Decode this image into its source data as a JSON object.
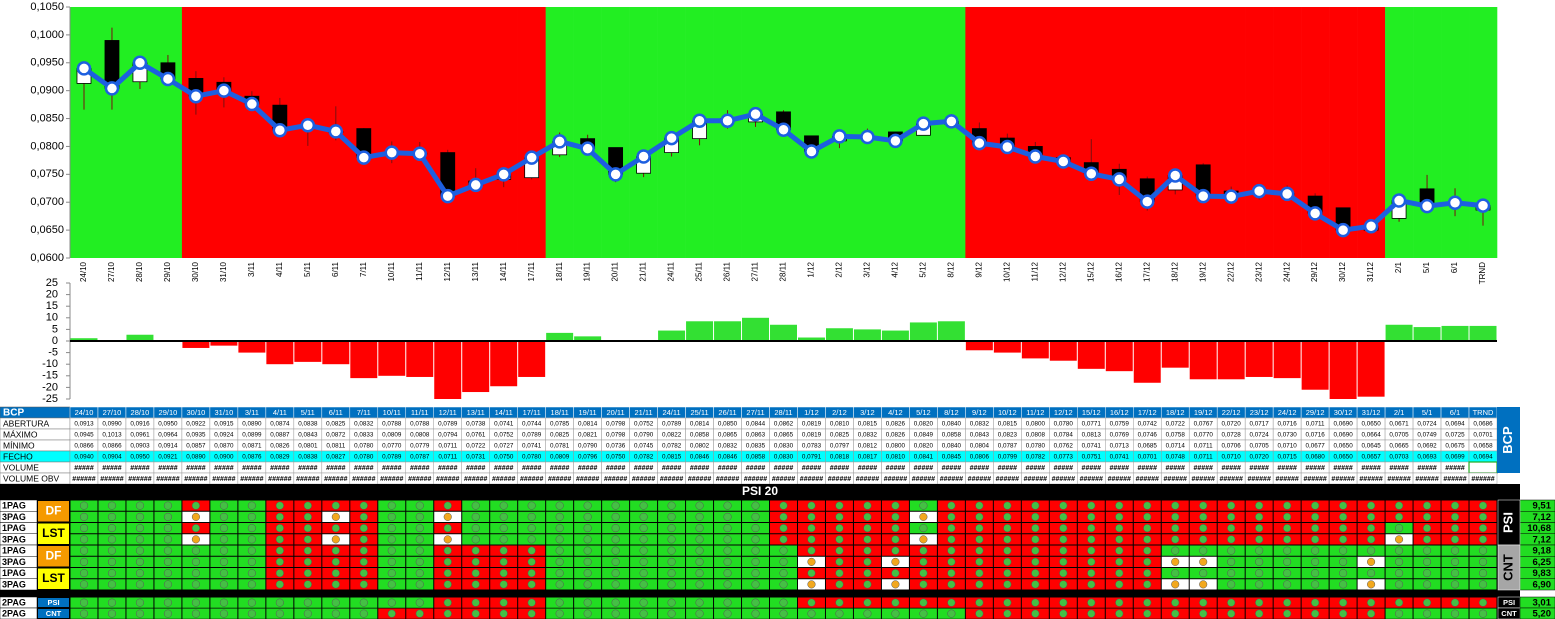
{
  "chart_data": [
    {
      "type": "candlestick",
      "categories": [
        "24/10",
        "27/10",
        "28/10",
        "29/10",
        "30/10",
        "31/10",
        "3/11",
        "4/11",
        "5/11",
        "6/11",
        "7/11",
        "10/11",
        "11/11",
        "12/11",
        "13/11",
        "14/11",
        "17/11",
        "18/11",
        "19/11",
        "20/11",
        "21/11",
        "24/11",
        "25/11",
        "26/11",
        "27/11",
        "28/11",
        "1/12",
        "2/12",
        "3/12",
        "4/12",
        "5/12",
        "8/12",
        "9/12",
        "10/12",
        "11/12",
        "12/12",
        "15/12",
        "16/12",
        "17/12",
        "18/12",
        "19/12",
        "22/12",
        "23/12",
        "24/12",
        "29/12",
        "30/12",
        "31/12",
        "2/1",
        "5/1",
        "6/1",
        "TRND"
      ],
      "series": [
        {
          "name": "ABERTURA",
          "values": [
            0.0913,
            0.099,
            0.0916,
            0.095,
            0.0922,
            0.0915,
            0.089,
            0.0874,
            0.0838,
            0.0825,
            0.0832,
            0.0788,
            0.0788,
            0.0789,
            0.0738,
            0.0741,
            0.0744,
            0.0785,
            0.0814,
            0.0798,
            0.0752,
            0.0789,
            0.0814,
            0.085,
            0.0844,
            0.0862,
            0.0819,
            0.081,
            0.0815,
            0.0826,
            0.082,
            0.084,
            0.0832,
            0.0815,
            0.08,
            0.078,
            0.0771,
            0.0759,
            0.0742,
            0.0722,
            0.0767,
            0.072,
            0.0717,
            0.0716,
            0.0711,
            0.069,
            0.065,
            0.0671,
            0.0724,
            0.0694,
            0.0686
          ],
          "value_labels": [
            "0,0913",
            "0,0990",
            "0,0916",
            "0,0950",
            "0,0922",
            "0,0915",
            "0,0890",
            "0,0874",
            "0,0838",
            "0,0825",
            "0,0832",
            "0,0788",
            "0,0788",
            "0,0789",
            "0,0738",
            "0,0741",
            "0,0744",
            "0,0785",
            "0,0814",
            "0,0798",
            "0,0752",
            "0,0789",
            "0,0814",
            "0,0850",
            "0,0844",
            "0,0862",
            "0,0819",
            "0,0810",
            "0,0815",
            "0,0826",
            "0,0820",
            "0,0840",
            "0,0832",
            "0,0815",
            "0,0800",
            "0,0780",
            "0,0771",
            "0,0759",
            "0,0742",
            "0,0722",
            "0,0767",
            "0,0720",
            "0,0717",
            "0,0716",
            "0,0711",
            "0,0690",
            "0,0650",
            "0,0671",
            "0,0724",
            "0,0694",
            "0,0686"
          ]
        },
        {
          "name": "MÁXIMO",
          "values": [
            0.0945,
            0.1013,
            0.0961,
            0.0964,
            0.0935,
            0.0924,
            0.0899,
            0.0887,
            0.0843,
            0.0872,
            0.0833,
            0.0809,
            0.0808,
            0.0794,
            0.0761,
            0.0752,
            0.0789,
            0.0825,
            0.0821,
            0.0798,
            0.079,
            0.0822,
            0.0858,
            0.0865,
            0.0863,
            0.0865,
            0.0819,
            0.0825,
            0.0832,
            0.0826,
            0.0849,
            0.0858,
            0.0843,
            0.0823,
            0.0808,
            0.0784,
            0.0813,
            0.0769,
            0.0746,
            0.0758,
            0.077,
            0.0728,
            0.0724,
            0.073,
            0.0716,
            0.069,
            0.0664,
            0.0705,
            0.0749,
            0.0725,
            0.0701
          ],
          "value_labels": [
            "0,0945",
            "0,1013",
            "0,0961",
            "0,0964",
            "0,0935",
            "0,0924",
            "0,0899",
            "0,0887",
            "0,0843",
            "0,0872",
            "0,0833",
            "0,0809",
            "0,0808",
            "0,0794",
            "0,0761",
            "0,0752",
            "0,0789",
            "0,0825",
            "0,0821",
            "0,0798",
            "0,0790",
            "0,0822",
            "0,0858",
            "0,0865",
            "0,0863",
            "0,0865",
            "0,0819",
            "0,0825",
            "0,0832",
            "0,0826",
            "0,0849",
            "0,0858",
            "0,0843",
            "0,0823",
            "0,0808",
            "0,0784",
            "0,0813",
            "0,0769",
            "0,0746",
            "0,0758",
            "0,0770",
            "0,0728",
            "0,0724",
            "0,0730",
            "0,0716",
            "0,0690",
            "0,0664",
            "0,0705",
            "0,0749",
            "0,0725",
            "0,0701"
          ]
        },
        {
          "name": "MÍNIMO",
          "values": [
            0.0866,
            0.0866,
            0.0903,
            0.0914,
            0.0857,
            0.087,
            0.0871,
            0.0826,
            0.0801,
            0.0811,
            0.078,
            0.077,
            0.0779,
            0.0711,
            0.0722,
            0.0727,
            0.0741,
            0.0781,
            0.079,
            0.0736,
            0.0745,
            0.0782,
            0.0802,
            0.0832,
            0.0835,
            0.083,
            0.0783,
            0.0797,
            0.0812,
            0.08,
            0.082,
            0.084,
            0.0804,
            0.0787,
            0.078,
            0.0762,
            0.0741,
            0.0713,
            0.0685,
            0.0714,
            0.0711,
            0.0706,
            0.0705,
            0.071,
            0.0677,
            0.065,
            0.0645,
            0.0665,
            0.0692,
            0.0675,
            0.0658
          ],
          "value_labels": [
            "0,0866",
            "0,0866",
            "0,0903",
            "0,0914",
            "0,0857",
            "0,0870",
            "0,0871",
            "0,0826",
            "0,0801",
            "0,0811",
            "0,0780",
            "0,0770",
            "0,0779",
            "0,0711",
            "0,0722",
            "0,0727",
            "0,0741",
            "0,0781",
            "0,0790",
            "0,0736",
            "0,0745",
            "0,0782",
            "0,0802",
            "0,0832",
            "0,0835",
            "0,0830",
            "0,0783",
            "0,0797",
            "0,0812",
            "0,0800",
            "0,0820",
            "0,0840",
            "0,0804",
            "0,0787",
            "0,0780",
            "0,0762",
            "0,0741",
            "0,0713",
            "0,0685",
            "0,0714",
            "0,0711",
            "0,0706",
            "0,0705",
            "0,0710",
            "0,0677",
            "0,0650",
            "0,0645",
            "0,0665",
            "0,0692",
            "0,0675",
            "0,0658"
          ]
        },
        {
          "name": "FECHO",
          "color": "#1d5fe0",
          "values": [
            0.094,
            0.0904,
            0.095,
            0.0921,
            0.089,
            0.09,
            0.0876,
            0.0829,
            0.0838,
            0.0827,
            0.078,
            0.0789,
            0.0787,
            0.0711,
            0.0731,
            0.075,
            0.078,
            0.0809,
            0.0796,
            0.075,
            0.0782,
            0.0815,
            0.0846,
            0.0846,
            0.0858,
            0.083,
            0.0791,
            0.0818,
            0.0817,
            0.081,
            0.0841,
            0.0845,
            0.0806,
            0.0799,
            0.0782,
            0.0773,
            0.0751,
            0.0741,
            0.0701,
            0.0748,
            0.0711,
            0.071,
            0.072,
            0.0715,
            0.068,
            0.065,
            0.0657,
            0.0703,
            0.0693,
            0.0699,
            0.0694
          ],
          "value_labels": [
            "0,0940",
            "0,0904",
            "0,0950",
            "0,0921",
            "0,0890",
            "0,0900",
            "0,0876",
            "0,0829",
            "0,0838",
            "0,0827",
            "0,0780",
            "0,0789",
            "0,0787",
            "0,0711",
            "0,0731",
            "0,0750",
            "0,0780",
            "0,0809",
            "0,0796",
            "0,0750",
            "0,0782",
            "0,0815",
            "0,0846",
            "0,0846",
            "0,0858",
            "0,0830",
            "0,0791",
            "0,0818",
            "0,0817",
            "0,0810",
            "0,0841",
            "0,0845",
            "0,0806",
            "0,0799",
            "0,0782",
            "0,0773",
            "0,0751",
            "0,0741",
            "0,0701",
            "0,0748",
            "0,0711",
            "0,0710",
            "0,0720",
            "0,0715",
            "0,0680",
            "0,0650",
            "0,0657",
            "0,0703",
            "0,0693",
            "0,0699",
            "0,0694"
          ]
        }
      ],
      "ylim": [
        0.06,
        0.105
      ],
      "yticks": [
        {
          "value": 0.06,
          "label": "0,0600"
        },
        {
          "value": 0.065,
          "label": "0,0650"
        },
        {
          "value": 0.07,
          "label": "0,0700"
        },
        {
          "value": 0.075,
          "label": "0,0750"
        },
        {
          "value": 0.08,
          "label": "0,0800"
        },
        {
          "value": 0.085,
          "label": "0,0850"
        },
        {
          "value": 0.09,
          "label": "0,0900"
        },
        {
          "value": 0.095,
          "label": "0,0950"
        },
        {
          "value": 0.1,
          "label": "0,1000"
        },
        {
          "value": 0.105,
          "label": "0,1050"
        }
      ],
      "up_color": "#ffffff",
      "down_color": "#000000",
      "wick_color": "#7a1010",
      "backgrounds": [
        "#22ee22",
        "#22ee22",
        "#22ee22",
        "#22ee22",
        "#ff0000",
        "#ff0000",
        "#ff0000",
        "#ff0000",
        "#ff0000",
        "#ff0000",
        "#ff0000",
        "#ff0000",
        "#ff0000",
        "#ff0000",
        "#ff0000",
        "#ff0000",
        "#ff0000",
        "#22ee22",
        "#22ee22",
        "#22ee22",
        "#22ee22",
        "#22ee22",
        "#22ee22",
        "#22ee22",
        "#22ee22",
        "#22ee22",
        "#22ee22",
        "#22ee22",
        "#22ee22",
        "#22ee22",
        "#22ee22",
        "#22ee22",
        "#ff0000",
        "#ff0000",
        "#ff0000",
        "#ff0000",
        "#ff0000",
        "#ff0000",
        "#ff0000",
        "#ff0000",
        "#ff0000",
        "#ff0000",
        "#ff0000",
        "#ff0000",
        "#ff0000",
        "#ff0000",
        "#ff0000",
        "#22ee22",
        "#22ee22",
        "#22ee22",
        "#22ee22"
      ]
    },
    {
      "type": "bar",
      "values": [
        1.2,
        0,
        2.7,
        0,
        -3,
        -2,
        -5,
        -10,
        -9,
        -10,
        -16,
        -15,
        -15.5,
        -25,
        -22,
        -19.5,
        -15.5,
        3.5,
        2,
        0,
        0,
        4.5,
        8.5,
        8.5,
        10,
        7,
        1.5,
        5.5,
        5,
        4.5,
        8,
        8.5,
        -4,
        -5,
        -7.5,
        -8.5,
        -12,
        -13,
        -18,
        -11.5,
        -16.5,
        -16.5,
        -15.5,
        -16,
        -21,
        -25,
        -24,
        7,
        6,
        6.5,
        6.5
      ],
      "ylim": [
        -25,
        25
      ],
      "yticks": [
        25,
        20,
        15,
        10,
        5,
        0,
        -5,
        -10,
        -15,
        -20,
        -25
      ],
      "positive_color": "#33e033",
      "negative_color": "#ff0000"
    }
  ],
  "table": {
    "corner": "BCP",
    "side_label": "BCP",
    "rows": [
      {
        "label": "VOLUME",
        "cells": [
          "#####",
          "#####",
          "#####",
          "#####",
          "#####",
          "#####",
          "#####",
          "#####",
          "#####",
          "#####",
          "#####",
          "#####",
          "#####",
          "#####",
          "#####",
          "#####",
          "#####",
          "#####",
          "#####",
          "#####",
          "#####",
          "#####",
          "#####",
          "#####",
          "#####",
          "#####",
          "#####",
          "#####",
          "#####",
          "#####",
          "#####",
          "#####",
          "#####",
          "#####",
          "#####",
          "#####",
          "#####",
          "#####",
          "#####",
          "#####",
          "#####",
          "#####",
          "#####",
          "#####",
          "#####",
          "#####",
          "#####",
          "#####",
          "#####",
          "#####"
        ]
      },
      {
        "label": "VOLUME OBV",
        "cells": [
          "######",
          "######",
          "######",
          "######",
          "######",
          "######",
          "######",
          "######",
          "######",
          "######",
          "######",
          "######",
          "######",
          "######",
          "######",
          "######",
          "######",
          "######",
          "######",
          "######",
          "######",
          "######",
          "######",
          "######",
          "######",
          "######",
          "######",
          "######",
          "######",
          "######",
          "######",
          "######",
          "######",
          "######",
          "######",
          "######",
          "######",
          "######",
          "######",
          "######",
          "######",
          "######",
          "######",
          "######",
          "######",
          "######",
          "######",
          "######",
          "######",
          "######",
          "######"
        ]
      }
    ]
  },
  "psi20": {
    "title": "PSI 20",
    "palette": {
      "G": {
        "fill": "#22dd22",
        "dot": "#44c044"
      },
      "R": {
        "fill": "#ff0000",
        "dot": "#44c044"
      },
      "W": {
        "fill": "#ffffff",
        "dot": "#f2a81e"
      }
    },
    "groups": [
      {
        "side_label": "PSI",
        "side_fill": "#000000",
        "side_text": "#ffffff",
        "tags": [
          {
            "text": "DF",
            "fill": "#f59a00",
            "ink": "#ffffff"
          },
          {
            "text": "LST",
            "fill": "#ffff00",
            "ink": "#000000"
          }
        ],
        "rows": [
          {
            "label": "1PAG",
            "value": "9,51",
            "cells": "GGGGRGGRRRRGGRGGGGGGGGGGGRRRRRGRRRRRRRRRRRRRRRRRRRR"
          },
          {
            "label": "3PAG",
            "value": "7,12",
            "cells": "GGGGWGGRRWRGGWGGGGGGGGGGGRRRRRWRRRRRRRRRRRRRRRRRRRR"
          },
          {
            "label": "1PAG",
            "value": "10,68",
            "cells": "GGGGRGGRRRRGGRGGGGGGGGGGGRRRRRGRRRRRRRRRRRRRRRRGRRR"
          },
          {
            "label": "3PAG",
            "value": "7,12",
            "cells": "GGGGWGGRRWRGGWGGGGGGGGGGGRRRRRWRRRRRRRRRRRRRRRRWRRR"
          }
        ]
      },
      {
        "side_label": "CNT",
        "side_fill": "#a6a6a6",
        "side_text": "#000000",
        "tags": [
          {
            "text": "DF",
            "fill": "#f59a00",
            "ink": "#ffffff"
          },
          {
            "text": "LST",
            "fill": "#ffff00",
            "ink": "#000000"
          }
        ],
        "rows": [
          {
            "label": "1PAG",
            "value": "9,18",
            "cells": "GGGGGGGRRRRGGRRRRGGGGGGGGGRRRRRRRRRRRRRGGGGGGGGGGGG"
          },
          {
            "label": "3PAG",
            "value": "6,25",
            "cells": "GGGGGGGRRRRGGRRRRGGGGGGGGGWRRWRRRRRRRRRWWGGGGGWGGGG"
          },
          {
            "label": "1PAG",
            "value": "9,83",
            "cells": "GGGGGGGRRRRGGRRRRGGGGGGGGGRRRRRRRRRRRRRGGGGGGGGGGGG"
          },
          {
            "label": "3PAG",
            "value": "6,90",
            "cells": "GGGGGGGRRRRGGRRRRGGGGGGGGGWRRWRRRRRRRRRWWGGGGGWGGGG"
          }
        ]
      }
    ],
    "bottom_rows": [
      {
        "label": "2PAG",
        "tag": "PSI",
        "side_label": "PSI",
        "value": "3,01",
        "cells": "GGGGGGGGGGGGGRRRRGGGGGGGGGRRRRRRRRRRRRRRRRRRRRRRRRR"
      },
      {
        "label": "2PAG",
        "tag": "CNT",
        "side_label": "CNT",
        "value": "5,20",
        "cells": "GGGGGGGGGGGRRRRRRGGGGGGGGGGGGGGGRRRRRRRRRRRRRRRGGGG"
      }
    ]
  }
}
